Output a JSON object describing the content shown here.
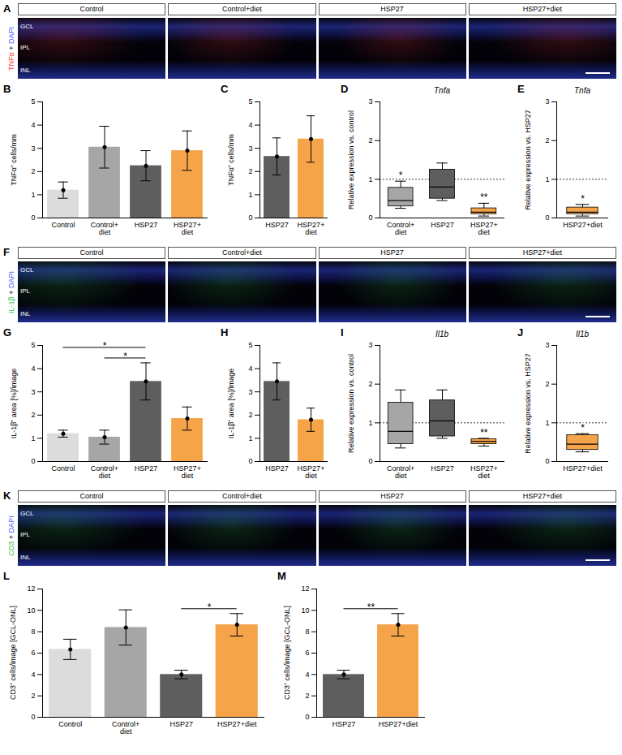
{
  "chart_data": [
    {
      "panel": "B",
      "type": "bar",
      "y_label": "TNFα⁺ cells/mm",
      "categories": [
        "Control",
        "Control+diet",
        "HSP27",
        "HSP27+diet"
      ],
      "values": [
        1.2,
        3.05,
        2.25,
        2.9
      ],
      "errors": [
        0.35,
        0.9,
        0.65,
        0.85
      ],
      "colors": [
        "#dcdcdc",
        "#a6a6a6",
        "#5e5e5e",
        "#f5a449"
      ],
      "ylim": [
        0,
        5
      ],
      "yticks": [
        0,
        1,
        2,
        3,
        4,
        5
      ],
      "brackets": []
    },
    {
      "panel": "C",
      "type": "bar",
      "y_label": "TNFα⁺ cells/mm",
      "categories": [
        "HSP27",
        "HSP27+diet"
      ],
      "values": [
        2.65,
        3.4
      ],
      "errors": [
        0.8,
        1.0
      ],
      "colors": [
        "#5e5e5e",
        "#f5a449"
      ],
      "ylim": [
        0,
        5
      ],
      "yticks": [
        0,
        1,
        2,
        3,
        4,
        5
      ],
      "brackets": []
    },
    {
      "panel": "D",
      "type": "box",
      "title": "Tnfa",
      "y_label": "Relative expression vs. control",
      "categories": [
        "Control+diet",
        "HSP27",
        "HSP27+diet"
      ],
      "min": [
        0.25,
        0.45,
        0.05
      ],
      "q1": [
        0.3,
        0.5,
        0.1
      ],
      "median": [
        0.45,
        0.8,
        0.15
      ],
      "q3": [
        0.78,
        1.25,
        0.25
      ],
      "max": [
        0.95,
        1.42,
        0.38
      ],
      "colors": [
        "#a6a6a6",
        "#5e5e5e",
        "#f5a449"
      ],
      "reference_line": 1,
      "ylim": [
        0,
        3
      ],
      "yticks": [
        0,
        1,
        2,
        3
      ],
      "annotations": [
        {
          "category": "Control+diet",
          "text": "*"
        },
        {
          "category": "HSP27+diet",
          "text": "**"
        }
      ]
    },
    {
      "panel": "E",
      "type": "box",
      "title": "Tnfa",
      "y_label": "Relative expression vs. HSP27",
      "categories": [
        "HSP27+diet"
      ],
      "min": [
        0.05
      ],
      "q1": [
        0.1
      ],
      "median": [
        0.15
      ],
      "q3": [
        0.27
      ],
      "max": [
        0.35
      ],
      "colors": [
        "#f5a449"
      ],
      "reference_line": 1,
      "ylim": [
        0,
        3
      ],
      "yticks": [
        0,
        1,
        2,
        3
      ],
      "annotations": [
        {
          "category": "HSP27+diet",
          "text": "*"
        }
      ]
    },
    {
      "panel": "G",
      "type": "bar",
      "y_label": "IL-1β⁺ area [%]/image",
      "categories": [
        "Control",
        "Control+diet",
        "HSP27",
        "HSP27+diet"
      ],
      "values": [
        1.2,
        1.05,
        3.45,
        1.85
      ],
      "errors": [
        0.15,
        0.3,
        0.8,
        0.5
      ],
      "colors": [
        "#dcdcdc",
        "#a6a6a6",
        "#5e5e5e",
        "#f5a449"
      ],
      "ylim": [
        0,
        5
      ],
      "yticks": [
        0,
        1,
        2,
        3,
        4,
        5
      ],
      "brackets": [
        {
          "from": "Control+diet",
          "to": "HSP27",
          "text": "*"
        },
        {
          "from": "Control",
          "to": "HSP27",
          "text": "*"
        }
      ]
    },
    {
      "panel": "H",
      "type": "bar",
      "y_label": "IL-1β⁺ area [%]/image",
      "categories": [
        "HSP27",
        "HSP27+diet"
      ],
      "values": [
        3.45,
        1.8
      ],
      "errors": [
        0.8,
        0.5
      ],
      "colors": [
        "#5e5e5e",
        "#f5a449"
      ],
      "ylim": [
        0,
        5
      ],
      "yticks": [
        0,
        1,
        2,
        3,
        4,
        5
      ],
      "brackets": []
    },
    {
      "panel": "I",
      "type": "box",
      "title": "Il1b",
      "y_label": "Relative expression vs. control",
      "categories": [
        "Control+diet",
        "HSP27",
        "HSP27+diet"
      ],
      "min": [
        0.35,
        0.6,
        0.4
      ],
      "q1": [
        0.45,
        0.65,
        0.45
      ],
      "median": [
        0.78,
        1.05,
        0.52
      ],
      "q3": [
        1.52,
        1.58,
        0.58
      ],
      "max": [
        1.85,
        1.85,
        0.6
      ],
      "colors": [
        "#a6a6a6",
        "#5e5e5e",
        "#f5a449"
      ],
      "reference_line": 1,
      "ylim": [
        0,
        3
      ],
      "yticks": [
        0,
        1,
        2,
        3
      ],
      "annotations": [
        {
          "category": "HSP27+diet",
          "text": "**"
        }
      ]
    },
    {
      "panel": "J",
      "type": "box",
      "title": "Il1b",
      "y_label": "Relative expression vs. HSP27",
      "categories": [
        "HSP27+diet"
      ],
      "min": [
        0.25
      ],
      "q1": [
        0.3
      ],
      "median": [
        0.45
      ],
      "q3": [
        0.68
      ],
      "max": [
        0.72
      ],
      "colors": [
        "#f5a449"
      ],
      "reference_line": 1,
      "ylim": [
        0,
        3
      ],
      "yticks": [
        0,
        1,
        2,
        3
      ],
      "annotations": [
        {
          "category": "HSP27+diet",
          "text": "*"
        }
      ]
    },
    {
      "panel": "L",
      "type": "bar",
      "y_label": "CD3⁺ cells/image [GCL-ONL]",
      "categories": [
        "Control",
        "Control+diet",
        "HSP27",
        "HSP27+diet"
      ],
      "values": [
        6.35,
        8.4,
        4.0,
        8.65
      ],
      "errors": [
        0.95,
        1.65,
        0.4,
        1.05
      ],
      "colors": [
        "#dcdcdc",
        "#a6a6a6",
        "#5e5e5e",
        "#f5a449"
      ],
      "ylim": [
        0,
        12
      ],
      "yticks": [
        0,
        2,
        4,
        6,
        8,
        10,
        12
      ],
      "brackets": [
        {
          "from": "HSP27",
          "to": "HSP27+diet",
          "text": "*"
        }
      ]
    },
    {
      "panel": "M",
      "type": "bar",
      "y_label": "CD3⁺ cells/image [GCL-ONL]",
      "categories": [
        "HSP27",
        "HSP27+diet"
      ],
      "values": [
        4.0,
        8.65
      ],
      "errors": [
        0.4,
        1.05
      ],
      "colors": [
        "#5e5e5e",
        "#f5a449"
      ],
      "ylim": [
        0,
        12
      ],
      "yticks": [
        0,
        2,
        4,
        6,
        8,
        10,
        12
      ],
      "brackets": [
        {
          "from": "HSP27",
          "to": "HSP27+diet",
          "text": "**"
        }
      ]
    }
  ],
  "image_panels": [
    {
      "panel": "A",
      "stain_label": [
        {
          "text": "TNFα",
          "color": "#ff3b3b"
        },
        {
          "text": " + ",
          "color": "#222222"
        },
        {
          "text": "DAPI",
          "color": "#4a5cff"
        }
      ],
      "groups": [
        "Control",
        "Control+diet",
        "HSP27",
        "HSP27+diet"
      ],
      "layers": [
        "GCL",
        "IPL",
        "INL"
      ]
    },
    {
      "panel": "F",
      "stain_label": [
        {
          "text": "IL-1β",
          "color": "#2fc24a"
        },
        {
          "text": " + ",
          "color": "#222222"
        },
        {
          "text": "DAPI",
          "color": "#4a5cff"
        }
      ],
      "groups": [
        "Control",
        "Control+diet",
        "HSP27",
        "HSP27+diet"
      ],
      "layers": [
        "GCL",
        "IPL",
        "INL"
      ]
    },
    {
      "panel": "K",
      "stain_label": [
        {
          "text": "CD3",
          "color": "#2fc24a"
        },
        {
          "text": " + ",
          "color": "#222222"
        },
        {
          "text": "DAPI",
          "color": "#4a5cff"
        }
      ],
      "groups": [
        "Control",
        "Control+diet",
        "HSP27",
        "HSP27+diet"
      ],
      "layers": [
        "GCL",
        "IPL",
        "INL"
      ]
    }
  ]
}
